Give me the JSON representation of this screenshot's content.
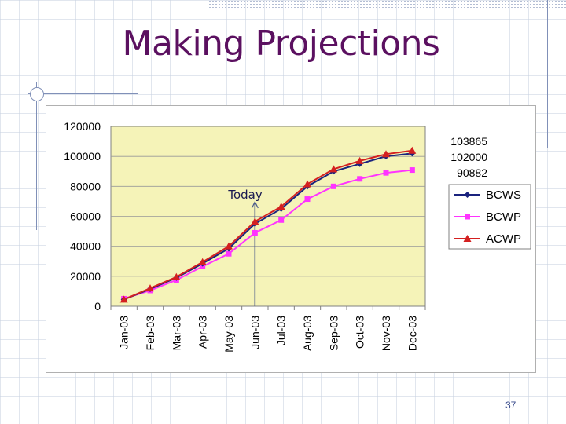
{
  "slide": {
    "title": "Making Projections",
    "page_number": "37"
  },
  "annotation": {
    "label": "Today",
    "category": "Jun-03"
  },
  "end_labels": [
    "103865",
    "102000",
    "90882"
  ],
  "colors": {
    "title": "#5b1060",
    "plot_bg": "#f5f3b8",
    "bcws": "#1a237e",
    "bcwp": "#ff33ff",
    "acwp": "#d42020"
  },
  "chart_data": {
    "type": "line",
    "title": "",
    "xlabel": "",
    "ylabel": "",
    "ylim": [
      0,
      120000
    ],
    "yticks": [
      "0",
      "20000",
      "40000",
      "60000",
      "80000",
      "100000",
      "120000"
    ],
    "grid": true,
    "legend_position": "right",
    "categories": [
      "Jan-03",
      "Feb-03",
      "Mar-03",
      "Apr-03",
      "May-03",
      "Jun-03",
      "Jul-03",
      "Aug-03",
      "Sep-03",
      "Oct-03",
      "Nov-03",
      "Dec-03"
    ],
    "series": [
      {
        "name": "BCWS",
        "marker": "diamond",
        "values": [
          4500,
          11500,
          19000,
          28500,
          38500,
          55000,
          65000,
          80000,
          90000,
          95000,
          100000,
          102000
        ]
      },
      {
        "name": "BCWP",
        "marker": "square",
        "values": [
          5000,
          10500,
          17500,
          26500,
          35000,
          49000,
          57500,
          71500,
          80000,
          85000,
          89000,
          90882
        ]
      },
      {
        "name": "ACWP",
        "marker": "triangle",
        "values": [
          4500,
          12000,
          19500,
          29500,
          40000,
          56500,
          66500,
          81500,
          91500,
          97000,
          101500,
          103865
        ]
      }
    ]
  }
}
